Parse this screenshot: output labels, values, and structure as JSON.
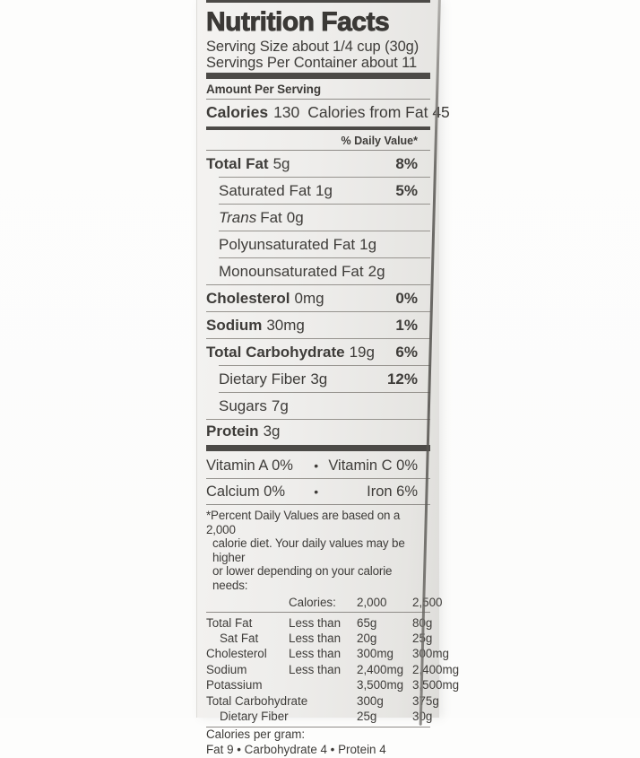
{
  "label": {
    "title": "Nutrition Facts",
    "serving_size": "Serving Size about 1/4 cup (30g)",
    "servings_per_container": "Servings Per Container about 11",
    "amount_per_serving": "Amount Per Serving",
    "calories": {
      "label": "Calories",
      "value": "130",
      "from_fat": "Calories from Fat 45"
    },
    "daily_value_header": "% Daily Value*",
    "nutrients": [
      {
        "name": "Total Fat",
        "amount": "5g",
        "dv": "8%"
      },
      {
        "name": "Saturated Fat",
        "amount": "1g",
        "dv": "5%"
      },
      {
        "name_italic": "Trans",
        "name": "Fat",
        "amount": "0g"
      },
      {
        "name": "Polyunsaturated Fat",
        "amount": "1g"
      },
      {
        "name": "Monounsaturated Fat",
        "amount": "2g"
      },
      {
        "name": "Cholesterol",
        "amount": "0mg",
        "dv": "0%"
      },
      {
        "name": "Sodium",
        "amount": "30mg",
        "dv": "1%"
      },
      {
        "name": "Total Carbohydrate",
        "amount": "19g",
        "dv": "6%"
      },
      {
        "name": "Dietary Fiber",
        "amount": "3g",
        "dv": "12%"
      },
      {
        "name": "Sugars",
        "amount": "7g"
      },
      {
        "name": "Protein",
        "amount": "3g"
      }
    ],
    "vitamins": [
      {
        "left": "Vitamin A 0%",
        "bullet": "•",
        "right": "Vitamin C 0%"
      },
      {
        "left": "Calcium 0%",
        "bullet": "•",
        "right": "Iron 6%"
      }
    ],
    "footnote_lines": [
      "*Percent Daily Values are based on a 2,000",
      "calorie diet. Your daily values may be higher",
      "or lower depending on your calorie needs:"
    ],
    "dv_table": {
      "header": {
        "calories_label": "Calories:",
        "col_2000": "2,000",
        "col_2500": "2,500"
      },
      "rows": [
        {
          "name": "Total Fat",
          "qualifier": "Less than",
          "v2000": "65g",
          "v2500": "80g"
        },
        {
          "name": "Sat Fat",
          "qualifier": "Less than",
          "v2000": "20g",
          "v2500": "25g"
        },
        {
          "name": "Cholesterol",
          "qualifier": "Less than",
          "v2000": "300mg",
          "v2500": "300mg"
        },
        {
          "name": "Sodium",
          "qualifier": "Less than",
          "v2000": "2,400mg",
          "v2500": "2,400mg"
        },
        {
          "name": "Potassium",
          "qualifier": "",
          "v2000": "3,500mg",
          "v2500": "3,500mg"
        },
        {
          "name": "Total Carbohydrate",
          "qualifier": "",
          "v2000": "300g",
          "v2500": "375g"
        },
        {
          "name": "Dietary Fiber",
          "qualifier": "",
          "v2000": "25g",
          "v2500": "30g"
        }
      ]
    },
    "calories_per_gram": {
      "label": "Calories per gram:",
      "values": "Fat 9 • Carbohydrate 4 • Protein 4"
    }
  }
}
